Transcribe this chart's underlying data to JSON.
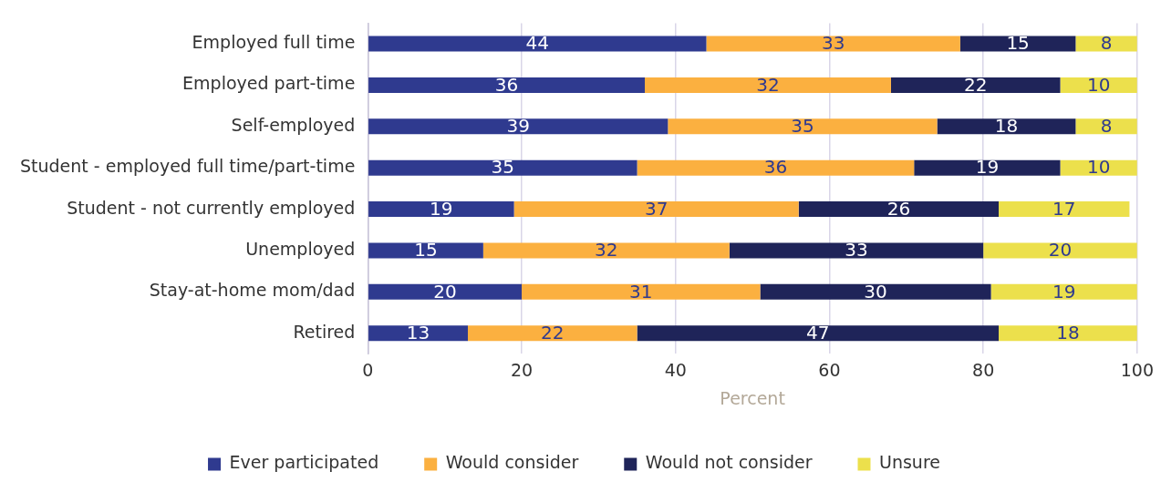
{
  "chart_data": {
    "type": "bar",
    "orientation": "horizontal",
    "stacked": true,
    "data_labels": true,
    "grid": "x",
    "legend": "bottom",
    "xlabel": "Percent",
    "categories": [
      "Employed full time",
      "Employed part-time",
      "Self-employed",
      "Student - employed full time/part-time",
      "Student - not currently employed",
      "Unemployed",
      "Stay-at-home mom/dad",
      "Retired"
    ],
    "xlim": [
      0,
      100
    ],
    "xticks": [
      0,
      20,
      40,
      60,
      80,
      100
    ],
    "series": [
      {
        "name": "Ever participated",
        "color": "#2f3a8f",
        "values": [
          44,
          36,
          39,
          35,
          19,
          15,
          20,
          13
        ]
      },
      {
        "name": "Would consider",
        "color": "#fbb040",
        "values": [
          33,
          32,
          35,
          36,
          37,
          32,
          31,
          22
        ]
      },
      {
        "name": "Would not consider",
        "color": "#1f2459",
        "values": [
          15,
          22,
          18,
          19,
          26,
          33,
          30,
          47
        ]
      },
      {
        "name": "Unsure",
        "color": "#ece04c",
        "values": [
          8,
          10,
          8,
          10,
          17,
          20,
          19,
          18
        ]
      }
    ]
  }
}
